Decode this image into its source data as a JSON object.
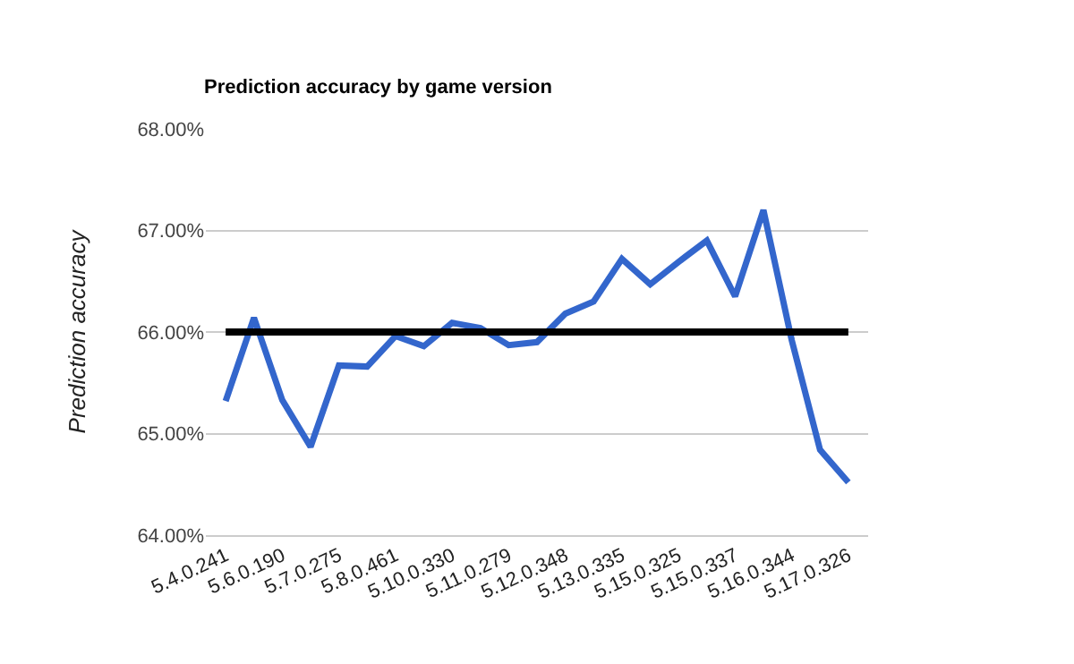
{
  "chart_data": {
    "type": "line",
    "title": "Prediction accuracy by game version",
    "ylabel": "Prediction accuracy",
    "categories": [
      "5.4.0.241",
      null,
      "5.6.0.190",
      null,
      "5.7.0.275",
      null,
      "5.8.0.461",
      null,
      "5.10.0.330",
      null,
      "5.11.0.279",
      null,
      "5.12.0.348",
      null,
      "5.13.0.335",
      null,
      "5.15.0.325",
      null,
      "5.15.0.337",
      null,
      "5.16.0.344",
      null,
      "5.17.0.326"
    ],
    "series": [
      {
        "color": "#3366cc",
        "values": [
          65.32,
          66.14,
          65.33,
          64.87,
          65.67,
          65.66,
          65.96,
          65.86,
          66.09,
          66.04,
          65.87,
          65.9,
          66.18,
          66.3,
          66.72,
          66.47,
          66.69,
          66.9,
          66.35,
          67.2,
          65.92,
          64.84,
          64.52
        ]
      }
    ],
    "ref_lines": [
      {
        "axis": "y",
        "value": 66,
        "color": "#000000"
      }
    ],
    "ylim": [
      64,
      68
    ],
    "yticks": [
      {
        "value": 64,
        "label": "64.00%"
      },
      {
        "value": 65,
        "label": "65.00%"
      },
      {
        "value": 66,
        "label": "66.00%"
      },
      {
        "value": 67,
        "label": "67.00%"
      },
      {
        "value": 68,
        "label": "68.00%"
      }
    ],
    "grid": "y",
    "marker": "none",
    "line_style": "solid"
  }
}
